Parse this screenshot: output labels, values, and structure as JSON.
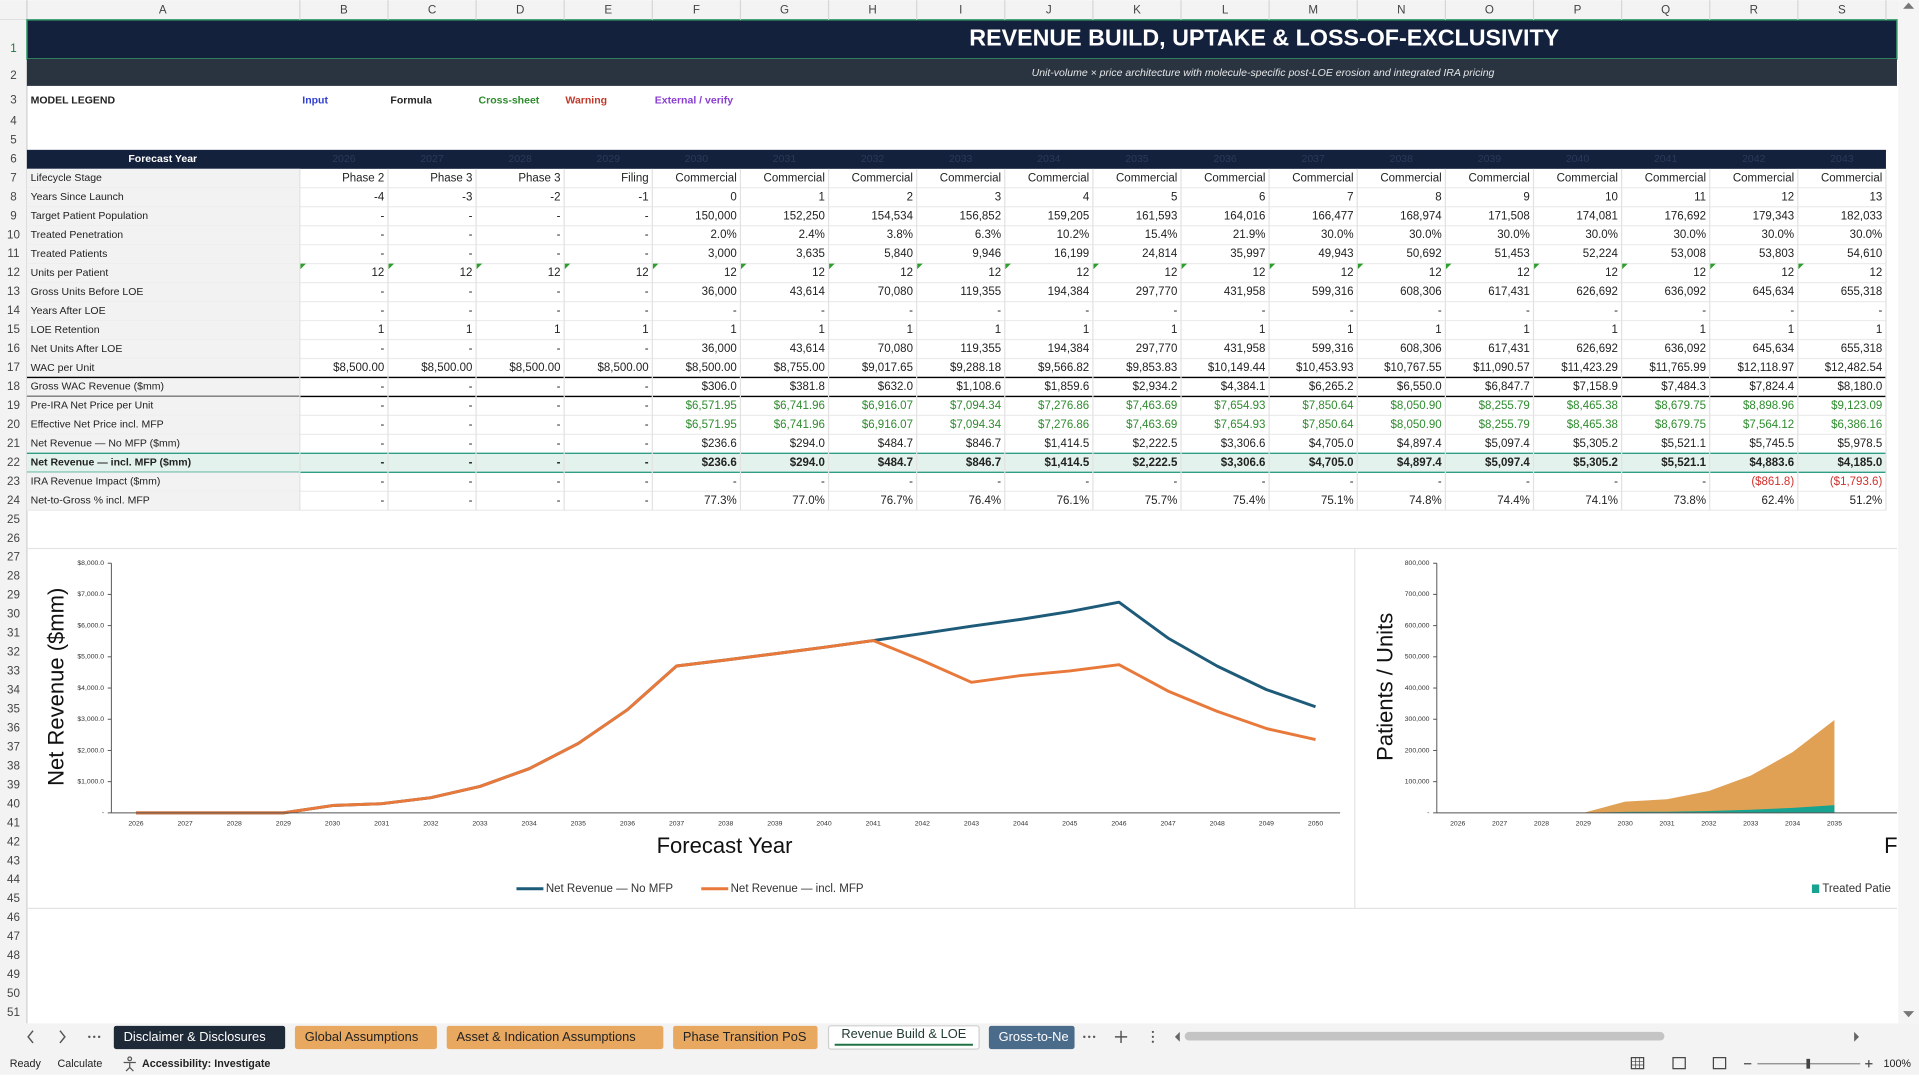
{
  "column_headers": [
    "A",
    "B",
    "C",
    "D",
    "E",
    "F",
    "G",
    "H",
    "I",
    "J",
    "K",
    "L",
    "M",
    "N",
    "O",
    "P",
    "Q",
    "R",
    "S"
  ],
  "row_numbers": [
    1,
    2,
    3,
    4,
    5,
    6,
    7,
    8,
    9,
    10,
    11,
    12,
    13,
    14,
    15,
    16,
    17,
    18,
    19,
    20,
    21,
    22,
    23,
    24,
    25,
    26,
    27,
    28,
    29,
    30,
    31,
    32,
    33,
    34,
    35,
    36,
    37,
    38,
    39,
    40,
    41,
    42,
    43,
    44,
    45,
    46,
    47,
    48,
    49,
    50,
    51
  ],
  "title": "REVENUE BUILD, UPTAKE & LOSS-OF-EXCLUSIVITY",
  "subtitle": "Unit-volume × price architecture with molecule-specific post-LOE erosion and integrated IRA pricing",
  "legend": {
    "label": "MODEL LEGEND",
    "items": [
      {
        "label": "Input",
        "color": "#2f3fd0"
      },
      {
        "label": "Formula",
        "color": "#222222"
      },
      {
        "label": "Cross-sheet",
        "color": "#2e8b2e"
      },
      {
        "label": "Warning",
        "color": "#c0392b"
      },
      {
        "label": "External / verify",
        "color": "#8a3fd1"
      }
    ]
  },
  "table": {
    "header": "Forecast Year",
    "header_fill": "#14213d",
    "years": [
      "2026",
      "2027",
      "2028",
      "2029",
      "2030",
      "2031",
      "2032",
      "2033",
      "2034",
      "2035",
      "2036",
      "2037",
      "2038",
      "2039",
      "2040",
      "2041",
      "2042",
      "2043"
    ],
    "rows": [
      {
        "label": "Lifecycle Stage",
        "cells": [
          "Phase 2",
          "Phase 3",
          "Phase 3",
          "Filing",
          "Commercial",
          "Commercial",
          "Commercial",
          "Commercial",
          "Commercial",
          "Commercial",
          "Commercial",
          "Commercial",
          "Commercial",
          "Commercial",
          "Commercial",
          "Commercial",
          "Commercial",
          "Commercial"
        ]
      },
      {
        "label": "Years Since Launch",
        "cells": [
          "-4",
          "-3",
          "-2",
          "-1",
          "0",
          "1",
          "2",
          "3",
          "4",
          "5",
          "6",
          "7",
          "8",
          "9",
          "10",
          "11",
          "12",
          "13"
        ]
      },
      {
        "label": "Target Patient Population",
        "cells": [
          "-",
          "-",
          "-",
          "-",
          "150,000",
          "152,250",
          "154,534",
          "156,852",
          "159,205",
          "161,593",
          "164,016",
          "166,477",
          "168,974",
          "171,508",
          "174,081",
          "176,692",
          "179,343",
          "182,033"
        ]
      },
      {
        "label": "Treated Penetration",
        "cells": [
          "-",
          "-",
          "-",
          "-",
          "2.0%",
          "2.4%",
          "3.8%",
          "6.3%",
          "10.2%",
          "15.4%",
          "21.9%",
          "30.0%",
          "30.0%",
          "30.0%",
          "30.0%",
          "30.0%",
          "30.0%",
          "30.0%"
        ]
      },
      {
        "label": "Treated Patients",
        "cells": [
          "-",
          "-",
          "-",
          "-",
          "3,000",
          "3,635",
          "5,840",
          "9,946",
          "16,199",
          "24,814",
          "35,997",
          "49,943",
          "50,692",
          "51,453",
          "52,224",
          "53,008",
          "53,803",
          "54,610"
        ]
      },
      {
        "label": "Units per Patient",
        "marker": "#2e9e2e",
        "cells": [
          "12",
          "12",
          "12",
          "12",
          "12",
          "12",
          "12",
          "12",
          "12",
          "12",
          "12",
          "12",
          "12",
          "12",
          "12",
          "12",
          "12",
          "12"
        ]
      },
      {
        "label": "Gross Units Before LOE",
        "cells": [
          "-",
          "-",
          "-",
          "-",
          "36,000",
          "43,614",
          "70,080",
          "119,355",
          "194,384",
          "297,770",
          "431,958",
          "599,316",
          "608,306",
          "617,431",
          "626,692",
          "636,092",
          "645,634",
          "655,318"
        ]
      },
      {
        "label": "Years After LOE",
        "cells": [
          "-",
          "-",
          "-",
          "-",
          "-",
          "-",
          "-",
          "-",
          "-",
          "-",
          "-",
          "-",
          "-",
          "-",
          "-",
          "-",
          "-",
          "-"
        ]
      },
      {
        "label": "LOE Retention",
        "cells": [
          "1",
          "1",
          "1",
          "1",
          "1",
          "1",
          "1",
          "1",
          "1",
          "1",
          "1",
          "1",
          "1",
          "1",
          "1",
          "1",
          "1",
          "1"
        ]
      },
      {
        "label": "Net Units After LOE",
        "cells": [
          "-",
          "-",
          "-",
          "-",
          "36,000",
          "43,614",
          "70,080",
          "119,355",
          "194,384",
          "297,770",
          "431,958",
          "599,316",
          "608,306",
          "617,431",
          "626,692",
          "636,092",
          "645,634",
          "655,318"
        ]
      },
      {
        "label": "WAC per Unit",
        "cells": [
          "$8,500.00",
          "$8,500.00",
          "$8,500.00",
          "$8,500.00",
          "$8,500.00",
          "$8,755.00",
          "$9,017.65",
          "$9,288.18",
          "$9,566.82",
          "$9,853.83",
          "$10,149.44",
          "$10,453.93",
          "$10,767.55",
          "$11,090.57",
          "$11,423.29",
          "$11,765.99",
          "$12,118.97",
          "$12,482.54"
        ]
      },
      {
        "label": "Gross WAC Revenue ($mm)",
        "border": "#000000",
        "cells": [
          "-",
          "-",
          "-",
          "-",
          "$306.0",
          "$381.8",
          "$632.0",
          "$1,108.6",
          "$1,859.6",
          "$2,934.2",
          "$4,384.1",
          "$6,265.2",
          "$6,550.0",
          "$6,847.7",
          "$7,158.9",
          "$7,484.3",
          "$7,824.4",
          "$8,180.0"
        ]
      },
      {
        "label": "Pre-IRA Net Price per Unit",
        "color": "#2e8b2e",
        "cells": [
          "-",
          "-",
          "-",
          "-",
          "$6,571.95",
          "$6,741.96",
          "$6,916.07",
          "$7,094.34",
          "$7,276.86",
          "$7,463.69",
          "$7,654.93",
          "$7,850.64",
          "$8,050.90",
          "$8,255.79",
          "$8,465.38",
          "$8,679.75",
          "$8,898.96",
          "$9,123.09"
        ]
      },
      {
        "label": "Effective Net Price incl. MFP",
        "color": "#2e8b2e",
        "cells": [
          "-",
          "-",
          "-",
          "-",
          "$6,571.95",
          "$6,741.96",
          "$6,916.07",
          "$7,094.34",
          "$7,276.86",
          "$7,463.69",
          "$7,654.93",
          "$7,850.64",
          "$8,050.90",
          "$8,255.79",
          "$8,465.38",
          "$8,679.75",
          "$7,564.12",
          "$6,386.16"
        ]
      },
      {
        "label": "Net Revenue — No MFP ($mm)",
        "cells": [
          "-",
          "-",
          "-",
          "-",
          "$236.6",
          "$294.0",
          "$484.7",
          "$846.7",
          "$1,414.5",
          "$2,222.5",
          "$3,306.6",
          "$4,705.0",
          "$4,897.4",
          "$5,097.4",
          "$5,305.2",
          "$5,521.1",
          "$5,745.5",
          "$5,978.5"
        ]
      },
      {
        "label": "Net Revenue — incl. MFP ($mm)",
        "bold": true,
        "fill": "#e3f2ec",
        "border": "#2f9e85",
        "cells": [
          "-",
          "-",
          "-",
          "-",
          "$236.6",
          "$294.0",
          "$484.7",
          "$846.7",
          "$1,414.5",
          "$2,222.5",
          "$3,306.6",
          "$4,705.0",
          "$4,897.4",
          "$5,097.4",
          "$5,305.2",
          "$5,521.1",
          "$4,883.6",
          "$4,185.0"
        ]
      },
      {
        "label": "IRA Revenue Impact ($mm)",
        "color": "#d0312d",
        "cells": [
          "-",
          "-",
          "-",
          "-",
          "-",
          "-",
          "-",
          "-",
          "-",
          "-",
          "-",
          "-",
          "-",
          "-",
          "-",
          "-",
          "($861.8)",
          "($1,793.6)"
        ]
      },
      {
        "label": "Net-to-Gross % incl. MFP",
        "cells": [
          "-",
          "-",
          "-",
          "-",
          "77.3%",
          "77.0%",
          "76.7%",
          "76.4%",
          "76.1%",
          "75.7%",
          "75.4%",
          "75.1%",
          "74.8%",
          "74.4%",
          "74.1%",
          "73.8%",
          "62.4%",
          "51.2%"
        ]
      }
    ]
  },
  "chart_data": [
    {
      "type": "line",
      "x_label": "Forecast Year",
      "y_label": "Net Revenue ($mm)",
      "categories": [
        "2026",
        "2027",
        "2028",
        "2029",
        "2030",
        "2031",
        "2032",
        "2033",
        "2034",
        "2035",
        "2036",
        "2037",
        "2038",
        "2039",
        "2040",
        "2041",
        "2042",
        "2043",
        "2044",
        "2045",
        "2046",
        "2047",
        "2048",
        "2049",
        "2050"
      ],
      "series": [
        {
          "name": "Net Revenue — No MFP",
          "color": "#1d5b79",
          "values": [
            0,
            0,
            0,
            0,
            236.6,
            294.0,
            484.7,
            846.7,
            1414.5,
            2222.5,
            3306.6,
            4705.0,
            4897.4,
            5097.4,
            5305.2,
            5521.1,
            5745.5,
            5978.5,
            6200,
            6450,
            6750,
            5600,
            4700,
            3950,
            3400
          ]
        },
        {
          "name": "Net Revenue — incl. MFP",
          "color": "#e8793a",
          "values": [
            0,
            0,
            0,
            0,
            236.6,
            294.0,
            484.7,
            846.7,
            1414.5,
            2222.5,
            3306.6,
            4705.0,
            4897.4,
            5097.4,
            5305.2,
            5521.1,
            4883.6,
            4185.0,
            4400,
            4550,
            4750,
            3900,
            3250,
            2700,
            2350
          ]
        }
      ],
      "ylim": [
        0,
        8000
      ],
      "yticks": [
        {
          "value": 0,
          "label": "-"
        },
        {
          "value": 1000,
          "label": "$1,000.0"
        },
        {
          "value": 2000,
          "label": "$2,000.0"
        },
        {
          "value": 3000,
          "label": "$3,000.0"
        },
        {
          "value": 4000,
          "label": "$4,000.0"
        },
        {
          "value": 5000,
          "label": "$5,000.0"
        },
        {
          "value": 6000,
          "label": "$6,000.0"
        },
        {
          "value": 7000,
          "label": "$7,000.0"
        },
        {
          "value": 8000,
          "label": "$8,000.0"
        }
      ],
      "grid": false,
      "legend": "bottom"
    },
    {
      "type": "area",
      "x_label": "F",
      "y_label": "Patients / Units",
      "categories": [
        "2026",
        "2027",
        "2028",
        "2029",
        "2030",
        "2031",
        "2032",
        "2033",
        "2034",
        "2035"
      ],
      "series": [
        {
          "name": "Treated Patie",
          "color": "#17a38f",
          "values": [
            0,
            0,
            0,
            0,
            3000,
            3635,
            5840,
            9946,
            16199,
            24814
          ]
        },
        {
          "color": "#e0a155",
          "values": [
            0,
            0,
            0,
            0,
            36000,
            43614,
            70080,
            119355,
            194384,
            297770
          ]
        }
      ],
      "ylim": [
        0,
        800000
      ],
      "yticks": [
        {
          "value": 0,
          "label": "-"
        },
        {
          "value": 100000,
          "label": "100,000"
        },
        {
          "value": 200000,
          "label": "200,000"
        },
        {
          "value": 300000,
          "label": "300,000"
        },
        {
          "value": 400000,
          "label": "400,000"
        },
        {
          "value": 500000,
          "label": "500,000"
        },
        {
          "value": 600000,
          "label": "600,000"
        },
        {
          "value": 700000,
          "label": "700,000"
        },
        {
          "value": 800000,
          "label": "800,000"
        }
      ],
      "grid": false,
      "legend": "bottom"
    }
  ],
  "sheet_tabs": [
    {
      "label": "Disclaimer & Disclosures",
      "color": "#1f2a38"
    },
    {
      "label": "Global Assumptions",
      "color": "#e8a860"
    },
    {
      "label": "Asset & Indication Assumptions",
      "color": "#e8a860"
    },
    {
      "label": "Phase Transition PoS",
      "color": "#e8a860"
    },
    {
      "label": "Revenue Build & LOE",
      "color": "#ffffff",
      "active": true
    },
    {
      "label": "Gross-to-Ne",
      "color": "#4a6b8a"
    }
  ],
  "status_bar": {
    "ready": "Ready",
    "calculate": "Calculate",
    "accessibility": "Accessibility: Investigate",
    "zoom": "100%"
  }
}
